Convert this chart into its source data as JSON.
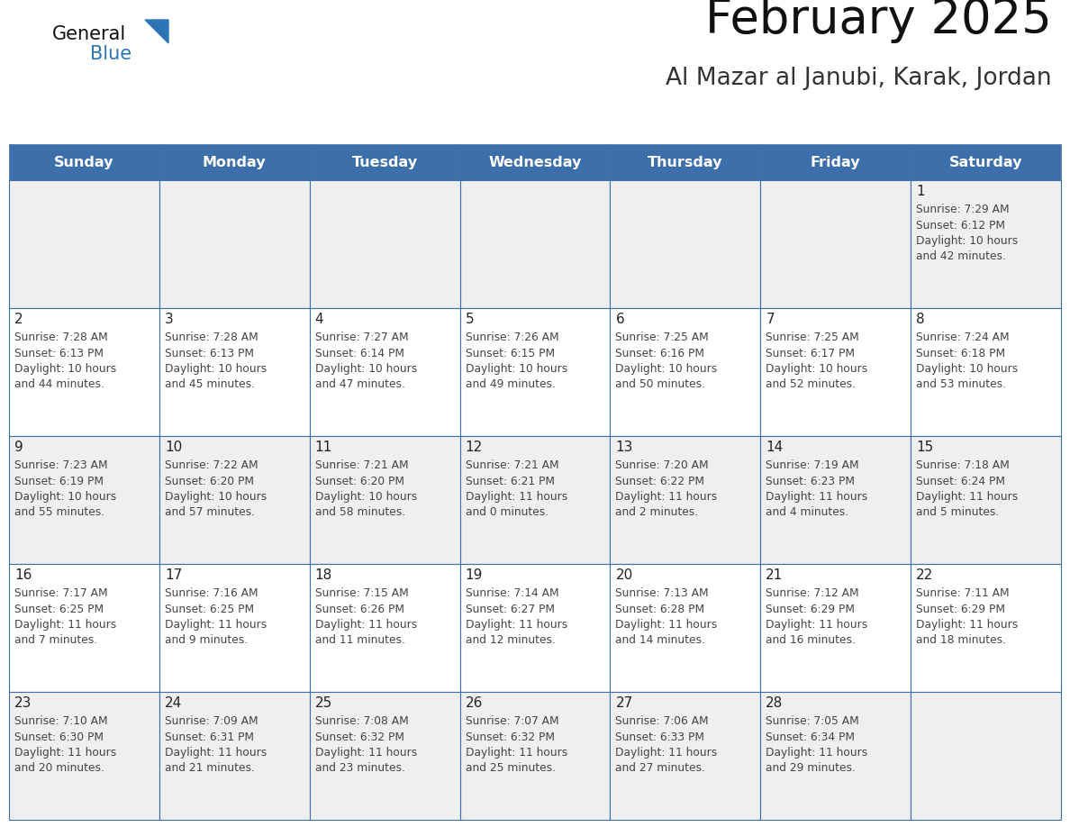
{
  "title": "February 2025",
  "subtitle": "Al Mazar al Janubi, Karak, Jordan",
  "days_of_week": [
    "Sunday",
    "Monday",
    "Tuesday",
    "Wednesday",
    "Thursday",
    "Friday",
    "Saturday"
  ],
  "header_bg": "#3D6FAB",
  "header_text": "#FFFFFF",
  "cell_bg_odd": "#EFEFEF",
  "cell_bg_even": "#FFFFFF",
  "cell_border": "#3D6FAB",
  "day_num_color": "#222222",
  "text_color": "#444444",
  "title_color": "#111111",
  "subtitle_color": "#333333",
  "logo_general_color": "#111111",
  "logo_blue_color": "#2E75B6",
  "calendar_data": [
    [
      null,
      null,
      null,
      null,
      null,
      null,
      {
        "day": "1",
        "sunrise": "7:29 AM",
        "sunset": "6:12 PM",
        "daylight": "10 hours",
        "daylight2": "and 42 minutes."
      }
    ],
    [
      {
        "day": "2",
        "sunrise": "7:28 AM",
        "sunset": "6:13 PM",
        "daylight": "10 hours",
        "daylight2": "and 44 minutes."
      },
      {
        "day": "3",
        "sunrise": "7:28 AM",
        "sunset": "6:13 PM",
        "daylight": "10 hours",
        "daylight2": "and 45 minutes."
      },
      {
        "day": "4",
        "sunrise": "7:27 AM",
        "sunset": "6:14 PM",
        "daylight": "10 hours",
        "daylight2": "and 47 minutes."
      },
      {
        "day": "5",
        "sunrise": "7:26 AM",
        "sunset": "6:15 PM",
        "daylight": "10 hours",
        "daylight2": "and 49 minutes."
      },
      {
        "day": "6",
        "sunrise": "7:25 AM",
        "sunset": "6:16 PM",
        "daylight": "10 hours",
        "daylight2": "and 50 minutes."
      },
      {
        "day": "7",
        "sunrise": "7:25 AM",
        "sunset": "6:17 PM",
        "daylight": "10 hours",
        "daylight2": "and 52 minutes."
      },
      {
        "day": "8",
        "sunrise": "7:24 AM",
        "sunset": "6:18 PM",
        "daylight": "10 hours",
        "daylight2": "and 53 minutes."
      }
    ],
    [
      {
        "day": "9",
        "sunrise": "7:23 AM",
        "sunset": "6:19 PM",
        "daylight": "10 hours",
        "daylight2": "and 55 minutes."
      },
      {
        "day": "10",
        "sunrise": "7:22 AM",
        "sunset": "6:20 PM",
        "daylight": "10 hours",
        "daylight2": "and 57 minutes."
      },
      {
        "day": "11",
        "sunrise": "7:21 AM",
        "sunset": "6:20 PM",
        "daylight": "10 hours",
        "daylight2": "and 58 minutes."
      },
      {
        "day": "12",
        "sunrise": "7:21 AM",
        "sunset": "6:21 PM",
        "daylight": "11 hours",
        "daylight2": "and 0 minutes."
      },
      {
        "day": "13",
        "sunrise": "7:20 AM",
        "sunset": "6:22 PM",
        "daylight": "11 hours",
        "daylight2": "and 2 minutes."
      },
      {
        "day": "14",
        "sunrise": "7:19 AM",
        "sunset": "6:23 PM",
        "daylight": "11 hours",
        "daylight2": "and 4 minutes."
      },
      {
        "day": "15",
        "sunrise": "7:18 AM",
        "sunset": "6:24 PM",
        "daylight": "11 hours",
        "daylight2": "and 5 minutes."
      }
    ],
    [
      {
        "day": "16",
        "sunrise": "7:17 AM",
        "sunset": "6:25 PM",
        "daylight": "11 hours",
        "daylight2": "and 7 minutes."
      },
      {
        "day": "17",
        "sunrise": "7:16 AM",
        "sunset": "6:25 PM",
        "daylight": "11 hours",
        "daylight2": "and 9 minutes."
      },
      {
        "day": "18",
        "sunrise": "7:15 AM",
        "sunset": "6:26 PM",
        "daylight": "11 hours",
        "daylight2": "and 11 minutes."
      },
      {
        "day": "19",
        "sunrise": "7:14 AM",
        "sunset": "6:27 PM",
        "daylight": "11 hours",
        "daylight2": "and 12 minutes."
      },
      {
        "day": "20",
        "sunrise": "7:13 AM",
        "sunset": "6:28 PM",
        "daylight": "11 hours",
        "daylight2": "and 14 minutes."
      },
      {
        "day": "21",
        "sunrise": "7:12 AM",
        "sunset": "6:29 PM",
        "daylight": "11 hours",
        "daylight2": "and 16 minutes."
      },
      {
        "day": "22",
        "sunrise": "7:11 AM",
        "sunset": "6:29 PM",
        "daylight": "11 hours",
        "daylight2": "and 18 minutes."
      }
    ],
    [
      {
        "day": "23",
        "sunrise": "7:10 AM",
        "sunset": "6:30 PM",
        "daylight": "11 hours",
        "daylight2": "and 20 minutes."
      },
      {
        "day": "24",
        "sunrise": "7:09 AM",
        "sunset": "6:31 PM",
        "daylight": "11 hours",
        "daylight2": "and 21 minutes."
      },
      {
        "day": "25",
        "sunrise": "7:08 AM",
        "sunset": "6:32 PM",
        "daylight": "11 hours",
        "daylight2": "and 23 minutes."
      },
      {
        "day": "26",
        "sunrise": "7:07 AM",
        "sunset": "6:32 PM",
        "daylight": "11 hours",
        "daylight2": "and 25 minutes."
      },
      {
        "day": "27",
        "sunrise": "7:06 AM",
        "sunset": "6:33 PM",
        "daylight": "11 hours",
        "daylight2": "and 27 minutes."
      },
      {
        "day": "28",
        "sunrise": "7:05 AM",
        "sunset": "6:34 PM",
        "daylight": "11 hours",
        "daylight2": "and 29 minutes."
      },
      null
    ]
  ],
  "figsize": [
    11.88,
    9.18
  ],
  "dpi": 100
}
